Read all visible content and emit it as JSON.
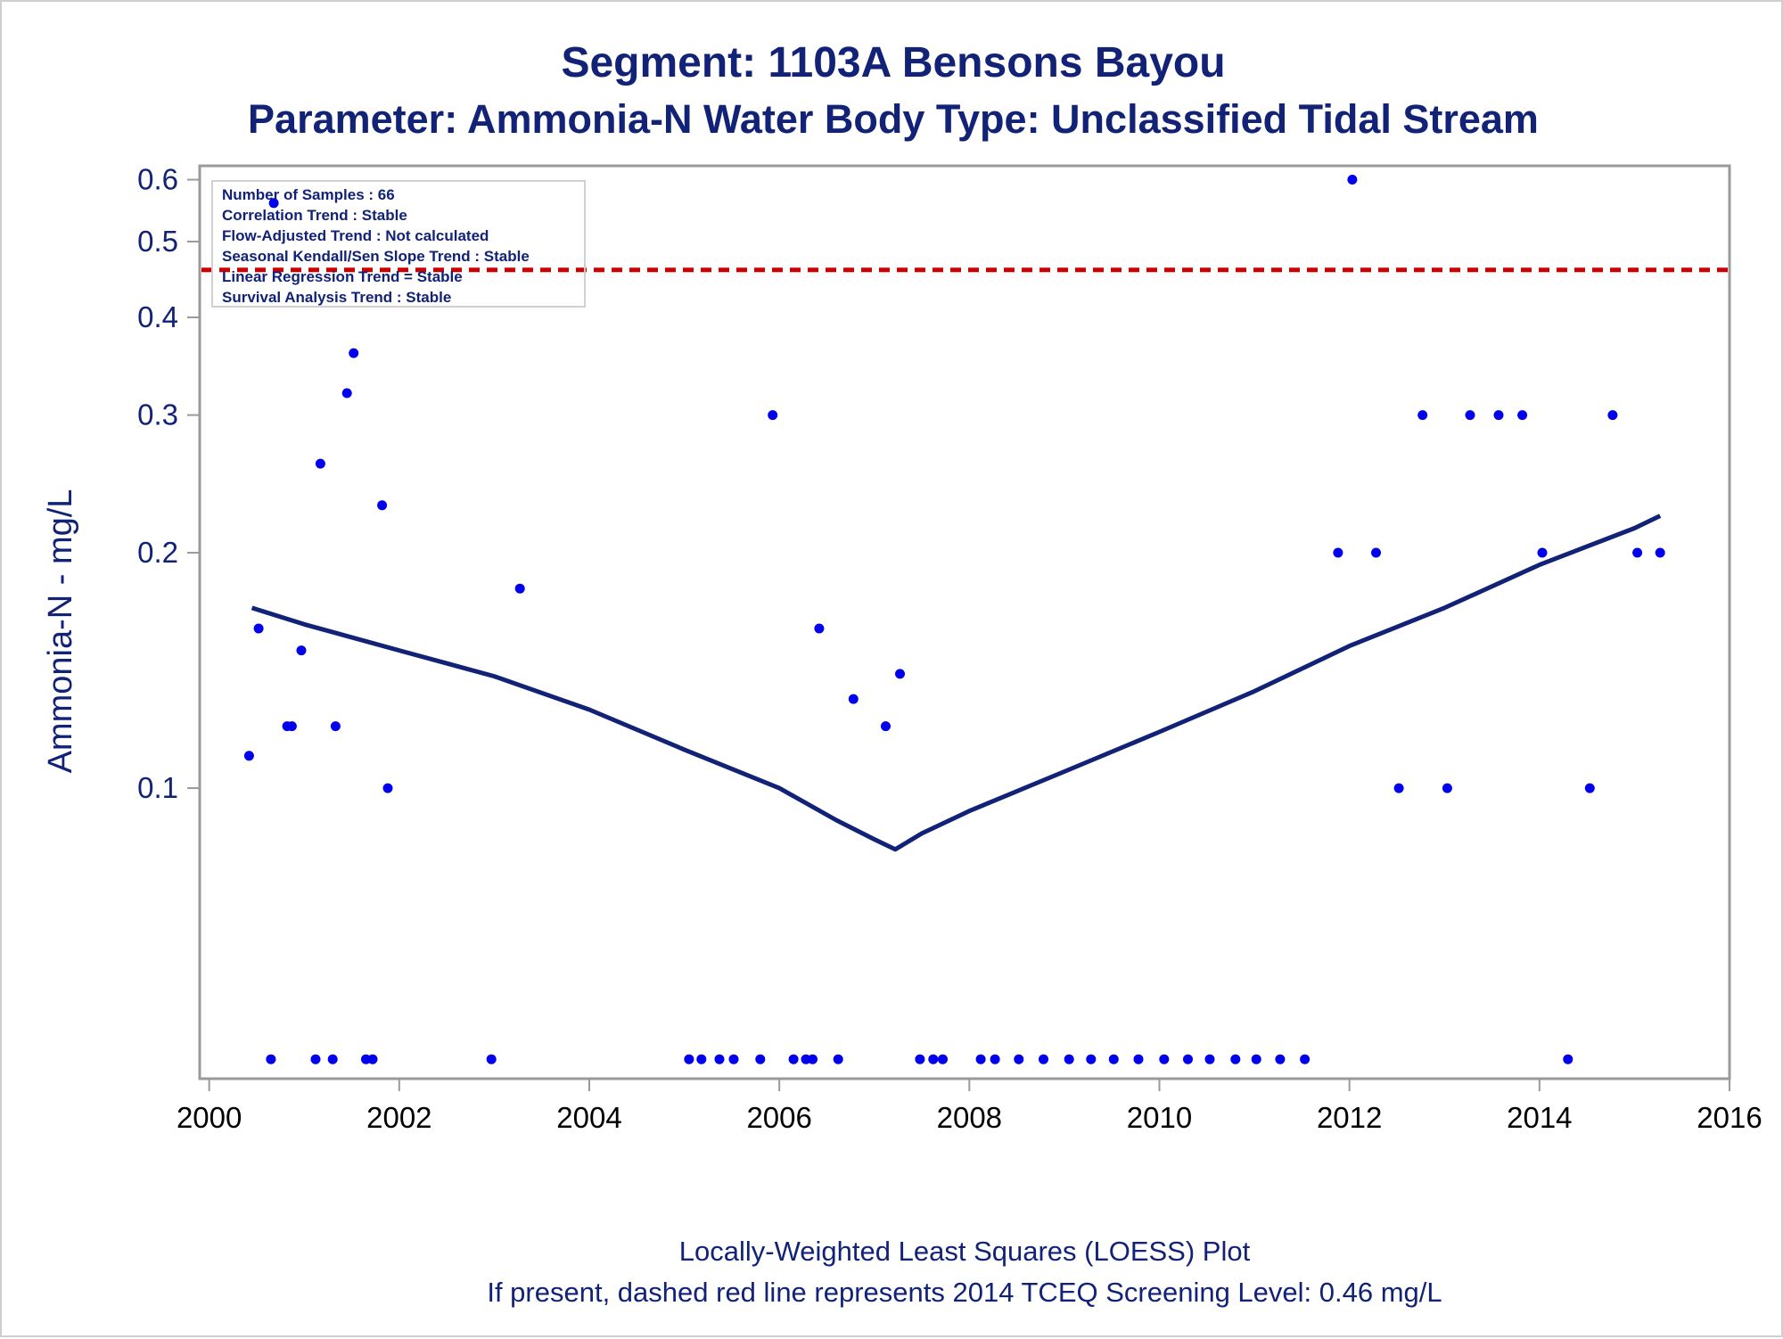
{
  "chart_data": {
    "type": "scatter",
    "title": "Segment: 1103A  Bensons Bayou",
    "subtitle": "Parameter: Ammonia-N   Water Body Type: Unclassified Tidal Stream",
    "ylabel": "Ammonia-N - mg/L",
    "xlabel": "",
    "footnotes": [
      "Locally-Weighted Least Squares (LOESS) Plot",
      "If present, dashed red line represents 2014 TCEQ Screening Level: 0.46 mg/L"
    ],
    "y_scale": "log",
    "xlim": [
      1999.9,
      2016.0
    ],
    "ylim": [
      0.0425,
      0.625
    ],
    "x_ticks": [
      "2000",
      "2002",
      "2004",
      "2006",
      "2008",
      "2010",
      "2012",
      "2014",
      "2016"
    ],
    "y_ticks": [
      "0.1",
      "0.2",
      "0.3",
      "0.4",
      "0.5",
      "0.6"
    ],
    "grid": false,
    "info_box": [
      "Number of Samples : 66",
      "Correlation Trend : Stable",
      "Flow-Adjusted Trend : Not calculated",
      "Seasonal Kendall/Sen Slope Trend : Stable",
      "Linear Regression Trend = Stable",
      "Survival Analysis Trend : Stable"
    ],
    "screening_level": {
      "value": 0.46,
      "color": "#cc0000",
      "style": "dashed"
    },
    "colors": {
      "points": "#0000ee",
      "loess": "#112277",
      "text": "#112277",
      "frame": "#9a9a9a"
    },
    "series": [
      {
        "kind": "points",
        "points": [
          [
            2000.42,
            0.11
          ],
          [
            2000.52,
            0.16
          ],
          [
            2000.65,
            0.045
          ],
          [
            2000.68,
            0.56
          ],
          [
            2000.82,
            0.12
          ],
          [
            2000.87,
            0.12
          ],
          [
            2000.97,
            0.15
          ],
          [
            2001.12,
            0.045
          ],
          [
            2001.17,
            0.26
          ],
          [
            2001.3,
            0.045
          ],
          [
            2001.33,
            0.12
          ],
          [
            2001.45,
            0.32
          ],
          [
            2001.52,
            0.36
          ],
          [
            2001.65,
            0.045
          ],
          [
            2001.72,
            0.045
          ],
          [
            2001.82,
            0.23
          ],
          [
            2001.88,
            0.1
          ],
          [
            2002.97,
            0.045
          ],
          [
            2003.27,
            0.18
          ],
          [
            2005.05,
            0.045
          ],
          [
            2005.18,
            0.045
          ],
          [
            2005.37,
            0.045
          ],
          [
            2005.52,
            0.045
          ],
          [
            2005.8,
            0.045
          ],
          [
            2005.93,
            0.3
          ],
          [
            2006.15,
            0.045
          ],
          [
            2006.28,
            0.045
          ],
          [
            2006.35,
            0.045
          ],
          [
            2006.42,
            0.16
          ],
          [
            2006.62,
            0.045
          ],
          [
            2006.78,
            0.13
          ],
          [
            2007.12,
            0.12
          ],
          [
            2007.27,
            0.14
          ],
          [
            2007.48,
            0.045
          ],
          [
            2007.62,
            0.045
          ],
          [
            2007.72,
            0.045
          ],
          [
            2008.12,
            0.045
          ],
          [
            2008.27,
            0.045
          ],
          [
            2008.52,
            0.045
          ],
          [
            2008.78,
            0.045
          ],
          [
            2009.05,
            0.045
          ],
          [
            2009.28,
            0.045
          ],
          [
            2009.52,
            0.045
          ],
          [
            2009.78,
            0.045
          ],
          [
            2010.05,
            0.045
          ],
          [
            2010.3,
            0.045
          ],
          [
            2010.53,
            0.045
          ],
          [
            2010.8,
            0.045
          ],
          [
            2011.02,
            0.045
          ],
          [
            2011.27,
            0.045
          ],
          [
            2011.53,
            0.045
          ],
          [
            2011.88,
            0.2
          ],
          [
            2012.03,
            0.6
          ],
          [
            2012.28,
            0.2
          ],
          [
            2012.52,
            0.1
          ],
          [
            2012.77,
            0.3
          ],
          [
            2013.03,
            0.1
          ],
          [
            2013.27,
            0.3
          ],
          [
            2013.57,
            0.3
          ],
          [
            2013.82,
            0.3
          ],
          [
            2014.03,
            0.2
          ],
          [
            2014.3,
            0.045
          ],
          [
            2014.53,
            0.1
          ],
          [
            2014.77,
            0.3
          ],
          [
            2015.03,
            0.2
          ],
          [
            2015.27,
            0.2
          ]
        ]
      },
      {
        "kind": "loess",
        "points": [
          [
            2000.45,
            0.17
          ],
          [
            2001.0,
            0.162
          ],
          [
            2002.0,
            0.15
          ],
          [
            2003.0,
            0.139
          ],
          [
            2004.0,
            0.126
          ],
          [
            2005.0,
            0.112
          ],
          [
            2006.0,
            0.1
          ],
          [
            2006.6,
            0.091
          ],
          [
            2007.0,
            0.086
          ],
          [
            2007.22,
            0.0835
          ],
          [
            2007.5,
            0.0875
          ],
          [
            2008.0,
            0.0935
          ],
          [
            2009.0,
            0.105
          ],
          [
            2010.0,
            0.118
          ],
          [
            2011.0,
            0.133
          ],
          [
            2012.0,
            0.152
          ],
          [
            2013.0,
            0.17
          ],
          [
            2014.0,
            0.193
          ],
          [
            2015.0,
            0.215
          ],
          [
            2015.27,
            0.223
          ]
        ]
      }
    ]
  }
}
